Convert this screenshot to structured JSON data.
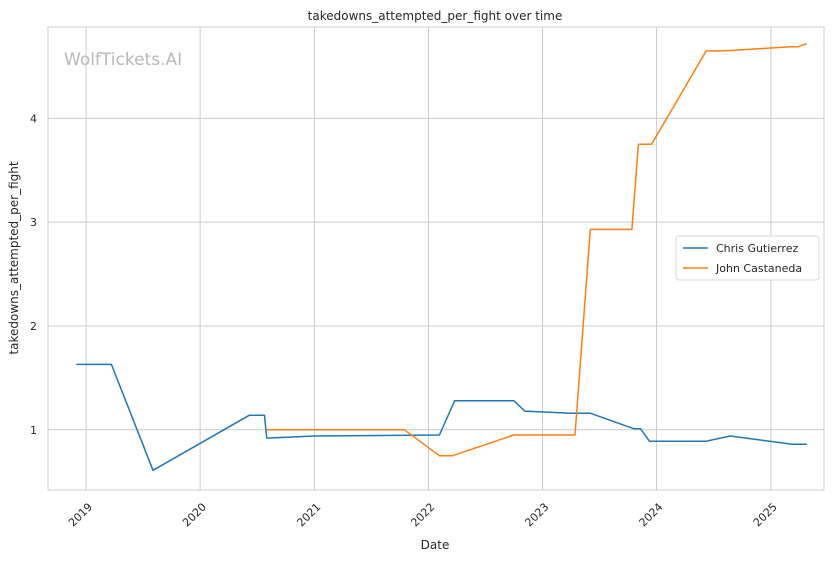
{
  "chart_data": {
    "type": "line",
    "title": "takedowns_attempted_per_fight over time",
    "xlabel": "Date",
    "ylabel": "takedowns_attempted_per_fight",
    "watermark": "WolfTickets.AI",
    "x_ticks": [
      "2019",
      "2020",
      "2021",
      "2022",
      "2023",
      "2024",
      "2025"
    ],
    "y_ticks": [
      "1",
      "2",
      "3",
      "4"
    ],
    "xlim": [
      "2018-09-01",
      "2025-06-20"
    ],
    "ylim": [
      0.42,
      4.88
    ],
    "grid": true,
    "legend_position": "right",
    "series": [
      {
        "name": "Chris Gutierrez",
        "color": "#1f77b4",
        "x": [
          "2018-12-01",
          "2019-03-23",
          "2019-08-03",
          "2020-06-06",
          "2020-07-25",
          "2020-08-01",
          "2021-01-01",
          "2022-02-05",
          "2022-03-26",
          "2022-10-01",
          "2022-11-05",
          "2023-04-01",
          "2023-06-03",
          "2023-10-21",
          "2023-11-11",
          "2023-12-09",
          "2024-06-08",
          "2024-08-24",
          "2025-02-15",
          "2025-03-08",
          "2025-04-26"
        ],
        "y": [
          1.63,
          1.63,
          0.61,
          1.14,
          1.14,
          0.92,
          0.94,
          0.95,
          1.28,
          1.28,
          1.18,
          1.16,
          1.16,
          1.01,
          1.01,
          0.89,
          0.89,
          0.94,
          0.87,
          0.86,
          0.86
        ]
      },
      {
        "name": "John Castaneda",
        "color": "#ff7f0e",
        "x": [
          "2020-08-01",
          "2021-10-16",
          "2022-02-05",
          "2022-03-19",
          "2022-10-01",
          "2023-04-15",
          "2023-06-03",
          "2023-10-14",
          "2023-11-04",
          "2023-12-16",
          "2024-06-08",
          "2024-08-03",
          "2025-03-08",
          "2025-03-29",
          "2025-04-26"
        ],
        "y": [
          1.0,
          1.0,
          0.75,
          0.75,
          0.95,
          0.95,
          2.93,
          2.93,
          3.75,
          3.75,
          4.65,
          4.65,
          4.69,
          4.69,
          4.72
        ]
      }
    ]
  }
}
